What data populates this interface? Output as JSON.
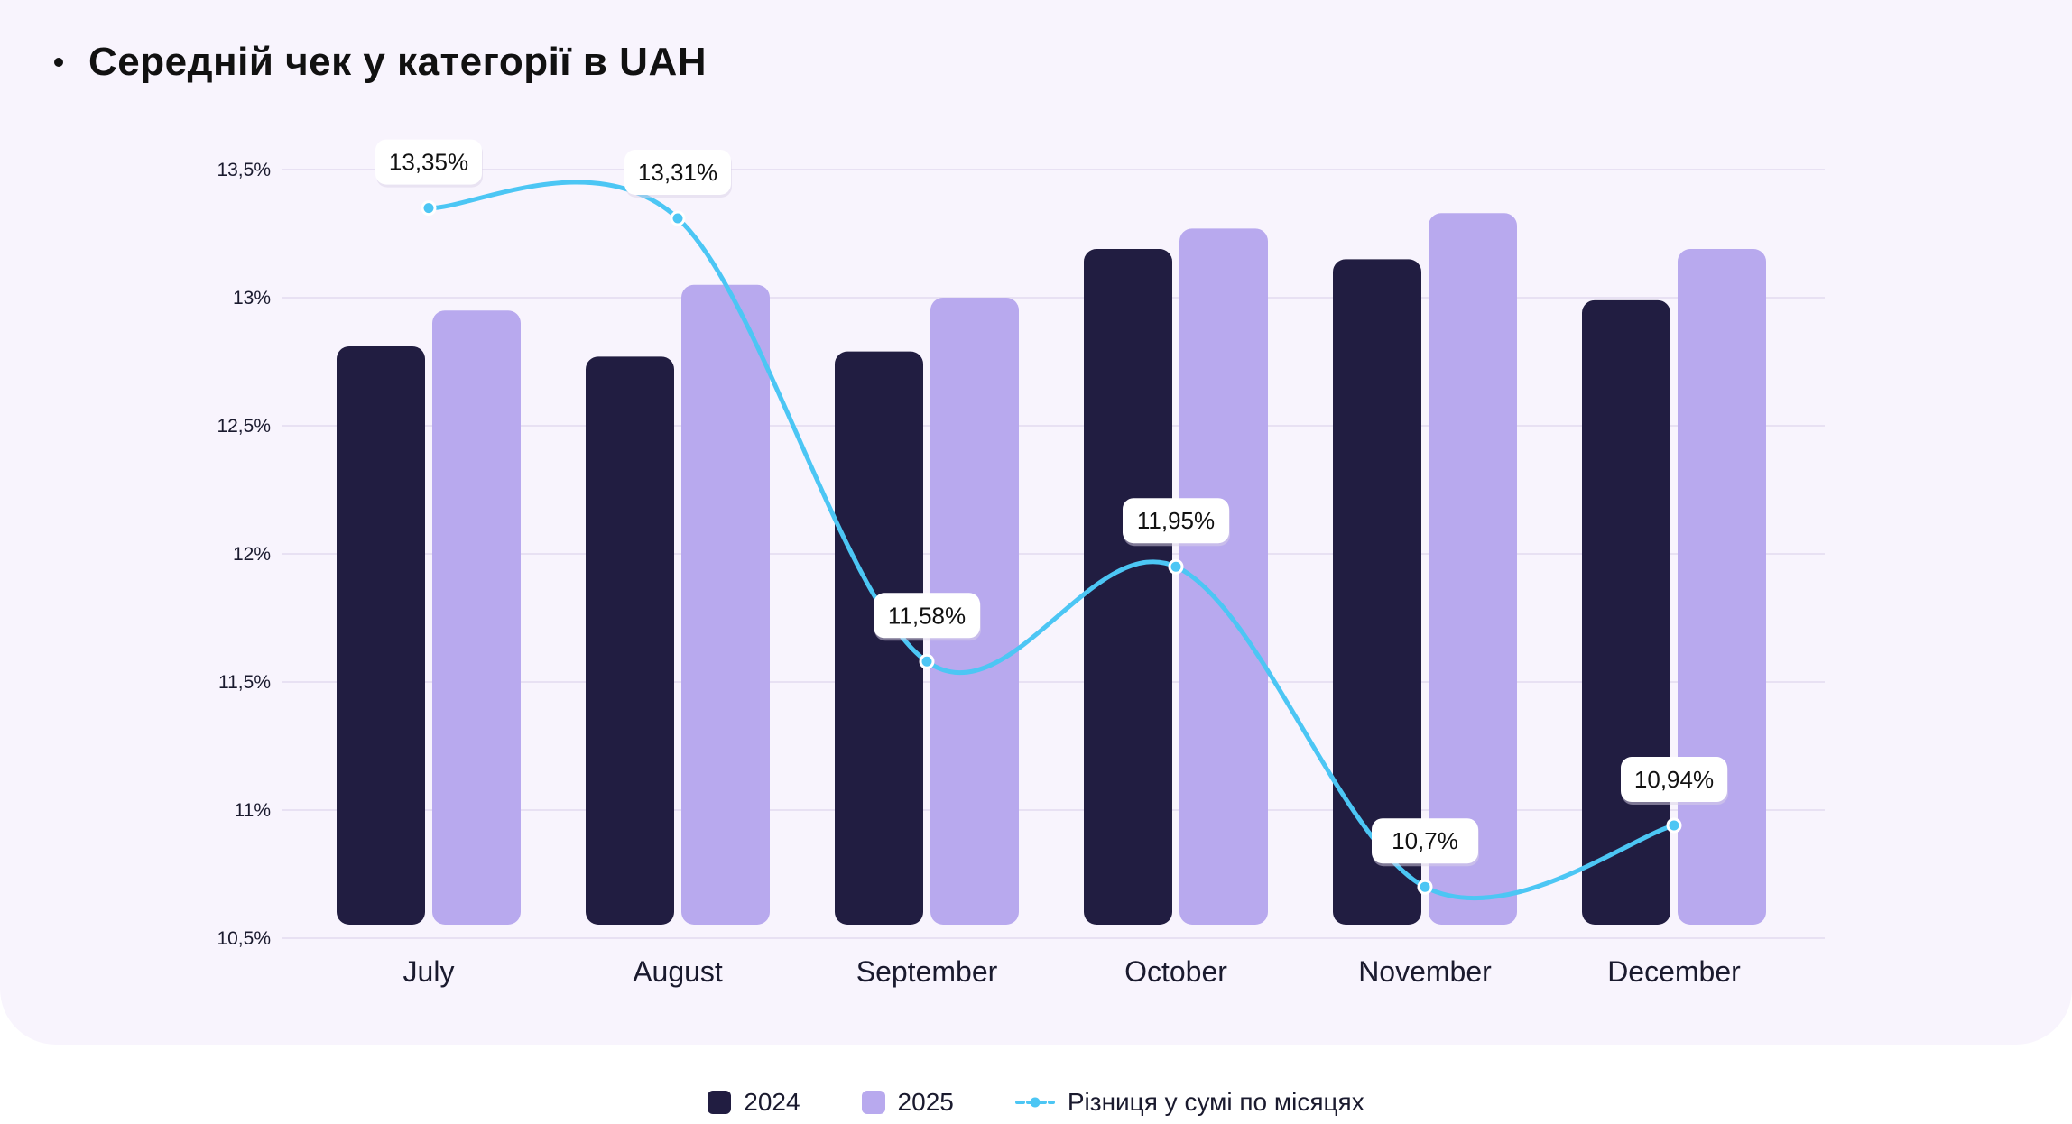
{
  "chart_data": {
    "type": "bar",
    "title": "Середній чек у категорії в UAH",
    "xlabel": "",
    "ylabel": "",
    "categories": [
      "July",
      "August",
      "September",
      "October",
      "November",
      "December"
    ],
    "y_ticks": [
      "13,5%",
      "13%",
      "12,5%",
      "12%",
      "11,5%",
      "11%",
      "10,5%"
    ],
    "ylim": [
      10.5,
      13.5
    ],
    "grid": true,
    "legend_position": "bottom-center",
    "series": [
      {
        "name": "2024",
        "kind": "bar",
        "color": "#211d41",
        "values": [
          12.81,
          12.77,
          12.79,
          13.19,
          13.15,
          12.99
        ]
      },
      {
        "name": "2025",
        "kind": "bar",
        "color": "#b8a9ee",
        "values": [
          12.95,
          13.05,
          13.0,
          13.27,
          13.33,
          13.19
        ]
      },
      {
        "name": "Різниця у сумі по місяцях",
        "kind": "line",
        "color": "#4cc6f4",
        "values": [
          13.35,
          13.31,
          11.58,
          11.95,
          10.7,
          10.94
        ],
        "labels": [
          "13,35%",
          "13,31%",
          "11,58%",
          "11,95%",
          "10,7%",
          "10,94%"
        ]
      }
    ]
  }
}
